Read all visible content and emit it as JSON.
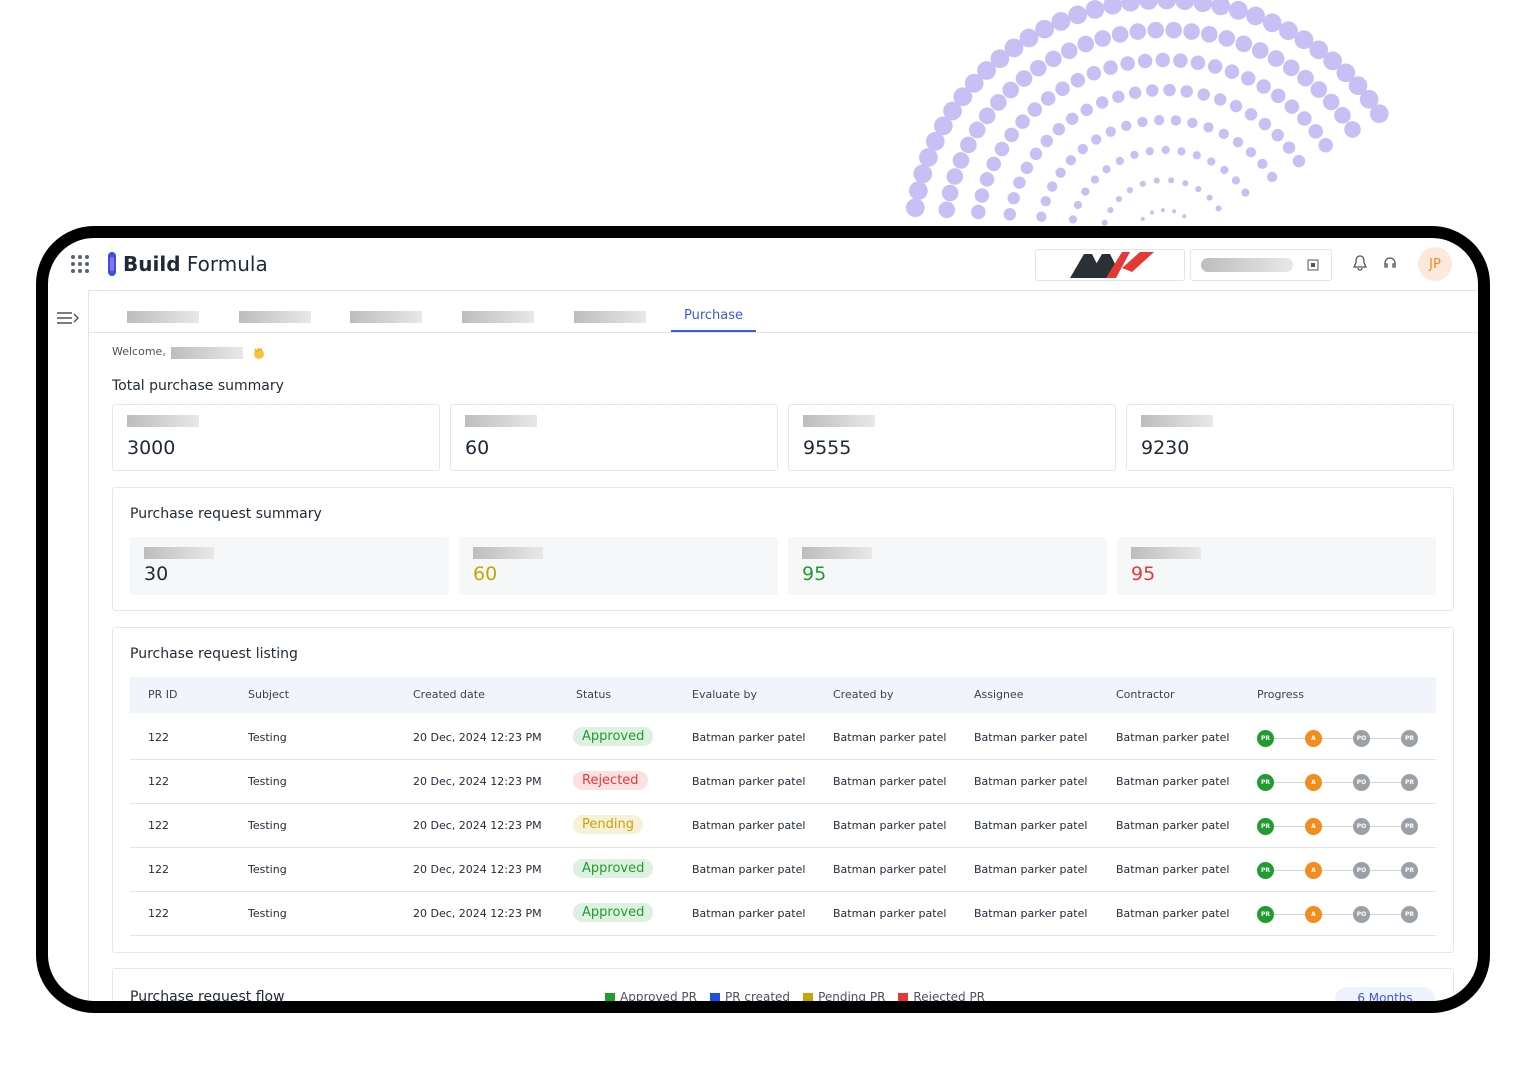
{
  "app": {
    "brand_bold": "Build",
    "brand_light": "Formula",
    "avatar": "JP"
  },
  "tabs": {
    "active": "Purchase"
  },
  "welcome": "Welcome,",
  "total_summary": {
    "title": "Total purchase summary",
    "values": [
      3000,
      60,
      9555,
      9230
    ]
  },
  "request_summary": {
    "title": "Purchase request summary",
    "values": [
      30,
      60,
      95,
      95
    ],
    "colors": [
      "#1f2a37",
      "#c9a400",
      "#1f9d2f",
      "#e53935"
    ]
  },
  "listing": {
    "title": "Purchase request listing",
    "columns": [
      "PR ID",
      "Subject",
      "Created date",
      "Status",
      "Evaluate by",
      "Created by",
      "Assignee",
      "Contractor",
      "Progress"
    ],
    "rows": [
      {
        "cells": [
          "122",
          "Testing",
          "20 Dec, 2024 12:23 PM"
        ],
        "status": "Approved",
        "status_color": "#1f9d2f",
        "people": [
          "Batman parker patel",
          "Batman parker patel",
          "Batman parker patel",
          "Batman parker patel"
        ]
      },
      {
        "cells": [
          "122",
          "Testing",
          "20 Dec, 2024 12:23 PM"
        ],
        "status": "Rejected",
        "status_color": "#e53935",
        "people": [
          "Batman parker patel",
          "Batman parker patel",
          "Batman parker patel",
          "Batman parker patel"
        ]
      },
      {
        "cells": [
          "122",
          "Testing",
          "20 Dec, 2024 12:23 PM"
        ],
        "status": "Pending",
        "status_color": "#c9a400",
        "people": [
          "Batman parker patel",
          "Batman parker patel",
          "Batman parker patel",
          "Batman parker patel"
        ]
      },
      {
        "cells": [
          "122",
          "Testing",
          "20 Dec, 2024 12:23 PM"
        ],
        "status": "Approved",
        "status_color": "#1f9d2f",
        "people": [
          "Batman parker patel",
          "Batman parker patel",
          "Batman parker patel",
          "Batman parker patel"
        ]
      },
      {
        "cells": [
          "122",
          "Testing",
          "20 Dec, 2024 12:23 PM"
        ],
        "status": "Approved",
        "status_color": "#1f9d2f",
        "people": [
          "Batman parker patel",
          "Batman parker patel",
          "Batman parker patel",
          "Batman parker patel"
        ]
      }
    ],
    "progress_steps": [
      {
        "label": "PR",
        "color": "#1f9d2f"
      },
      {
        "label": "A",
        "color": "#f28c1c"
      },
      {
        "label": "PO",
        "color": "#9aa0a6"
      },
      {
        "label": "PR",
        "color": "#9aa0a6"
      }
    ]
  },
  "flow": {
    "title": "Purchase request flow",
    "legend": [
      {
        "name": "Approved PR",
        "color": "#1f9d2f"
      },
      {
        "name": "PR created",
        "color": "#1f4fe0"
      },
      {
        "name": "Pending PR",
        "color": "#c9a400"
      },
      {
        "name": "Rejected PR",
        "color": "#e53935"
      }
    ],
    "range": "6 Months"
  }
}
